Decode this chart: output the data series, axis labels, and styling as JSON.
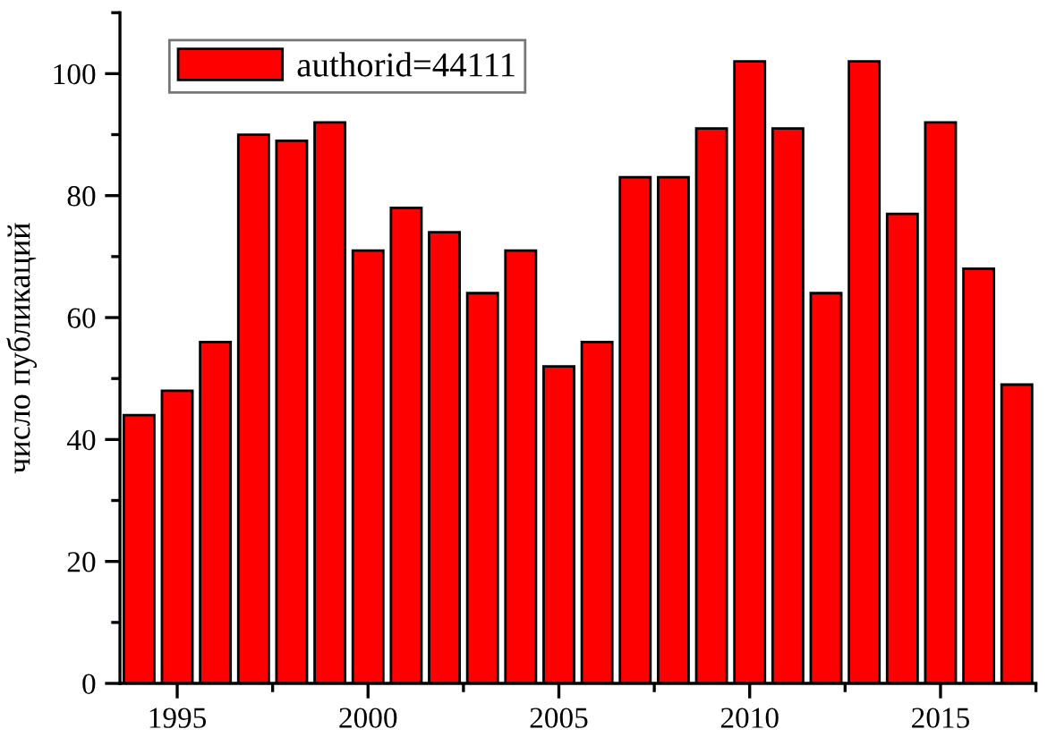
{
  "chart_data": {
    "type": "bar",
    "ylabel": "число публикаций",
    "x": [
      1994,
      1995,
      1996,
      1997,
      1998,
      1999,
      2000,
      2001,
      2002,
      2003,
      2004,
      2005,
      2006,
      2007,
      2008,
      2009,
      2010,
      2011,
      2012,
      2013,
      2014,
      2015,
      2016,
      2017
    ],
    "series": [
      {
        "name": "authorid=44111",
        "color": "#ff0000",
        "values": [
          44,
          48,
          56,
          90,
          89,
          92,
          71,
          78,
          74,
          64,
          71,
          52,
          56,
          83,
          83,
          91,
          102,
          91,
          64,
          102,
          77,
          92,
          68,
          49
        ]
      }
    ],
    "xlim": [
      1993.5,
      2017.5
    ],
    "xticks": [
      1995,
      2000,
      2005,
      2010,
      2015
    ],
    "ylim": [
      0,
      110
    ],
    "yticks": [
      0,
      20,
      40,
      60,
      80,
      100
    ],
    "legend": "top left",
    "grid": false
  }
}
